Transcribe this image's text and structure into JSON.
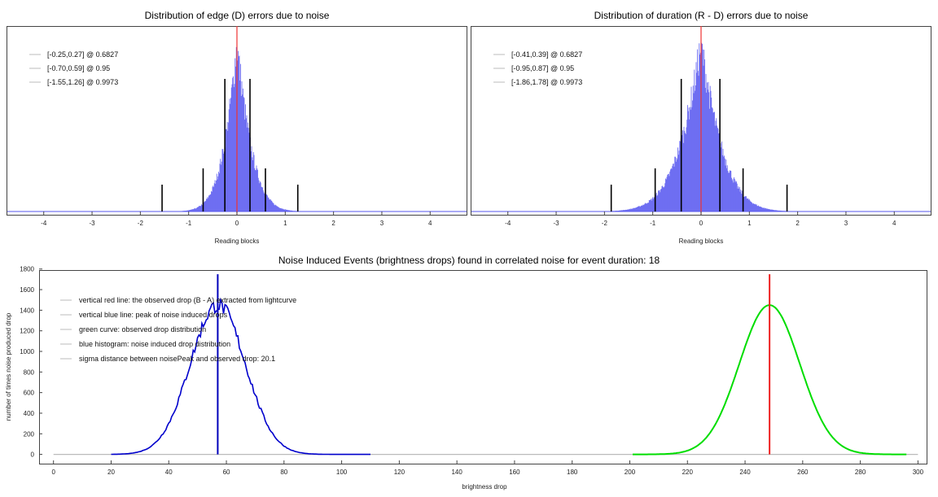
{
  "chart_data": [
    {
      "type": "bar",
      "title": "Distribution of edge (D) errors due to noise",
      "xlabel": "Reading blocks",
      "ylabel": "",
      "xlim": [
        -4.4,
        4.4
      ],
      "xticks": [
        -4,
        -3,
        -2,
        -1,
        0,
        1,
        2,
        3,
        4
      ],
      "grid": false,
      "legend_position": "top-left",
      "distribution": {
        "center": 0.0,
        "sigma_left": 0.25,
        "sigma_right": 0.27,
        "range": [
          -4.4,
          4.4
        ]
      },
      "legend": [
        {
          "label": "[-0.25,0.27] @ 0.6827",
          "interval": [
            -0.25,
            0.27
          ],
          "level": 0.6827
        },
        {
          "label": "[-0.70,0.59] @ 0.95",
          "interval": [
            -0.7,
            0.59
          ],
          "level": 0.95
        },
        {
          "label": "[-1.55,1.26] @ 0.9973",
          "interval": [
            -1.55,
            1.26
          ],
          "level": 0.9973
        }
      ],
      "zero_line_x": 0,
      "colors": {
        "histogram": "#5555ee",
        "zero_line": "#ee3333",
        "markers": "#000000"
      }
    },
    {
      "type": "bar",
      "title": "Distribution of duration (R - D) errors due to noise",
      "xlabel": "Reading blocks",
      "ylabel": "",
      "xlim": [
        -4.4,
        4.4
      ],
      "xticks": [
        -4,
        -3,
        -2,
        -1,
        0,
        1,
        2,
        3,
        4
      ],
      "grid": false,
      "legend_position": "top-left",
      "distribution": {
        "center": 0.0,
        "sigma_left": 0.41,
        "sigma_right": 0.39,
        "range": [
          -4.4,
          4.4
        ]
      },
      "legend": [
        {
          "label": "[-0.41,0.39] @ 0.6827",
          "interval": [
            -0.41,
            0.39
          ],
          "level": 0.6827
        },
        {
          "label": "[-0.95,0.87] @ 0.95",
          "interval": [
            -0.95,
            0.87
          ],
          "level": 0.95
        },
        {
          "label": "[-1.86,1.78] @ 0.9973",
          "interval": [
            -1.86,
            1.78
          ],
          "level": 0.9973
        }
      ],
      "zero_line_x": 0,
      "colors": {
        "histogram": "#5555ee",
        "zero_line": "#ee3333",
        "markers": "#000000"
      }
    },
    {
      "type": "line",
      "title": "Noise Induced Events (brightness drops) found in correlated noise for event duration: 18",
      "xlabel": "brightness drop",
      "ylabel": "number of times noise produced drop",
      "xlim": [
        -5,
        303
      ],
      "ylim": [
        -90,
        1790
      ],
      "xticks": [
        0,
        20,
        40,
        60,
        80,
        100,
        120,
        140,
        160,
        180,
        200,
        220,
        240,
        260,
        280,
        300
      ],
      "yticks": [
        0,
        200,
        400,
        600,
        800,
        1000,
        1200,
        1400,
        1600,
        1800
      ],
      "grid": false,
      "legend_position": "top-left",
      "legend": [
        {
          "label": "vertical red line: the observed drop (B - A) extracted from lightcurve"
        },
        {
          "label": "vertical blue line: peak of noise induced drops"
        },
        {
          "label": "green curve: observed drop distribution"
        },
        {
          "label": "blue histogram: noise induced drop distribution"
        },
        {
          "label": "sigma distance between noisePeak and observed drop: 20.1"
        }
      ],
      "series": [
        {
          "name": "blue histogram: noise induced drop distribution",
          "kind": "histogram",
          "mean": 57,
          "sigma": 9.6,
          "peak": 1450,
          "x_range": [
            0,
            110
          ]
        },
        {
          "name": "green curve: observed drop distribution",
          "kind": "curve",
          "mean": 248.5,
          "sigma": 10.5,
          "peak": 1450,
          "x_range": [
            201,
            296
          ]
        }
      ],
      "baseline": {
        "x_range": [
          0,
          300
        ],
        "y": 0
      },
      "red_line_x": 248.5,
      "blue_line_x": 57,
      "colors": {
        "histogram": "#0000cc",
        "curve": "#00dd00",
        "red_line": "#ee2222",
        "blue_line": "#0000bb",
        "baseline": "#bbbbbb"
      }
    }
  ]
}
